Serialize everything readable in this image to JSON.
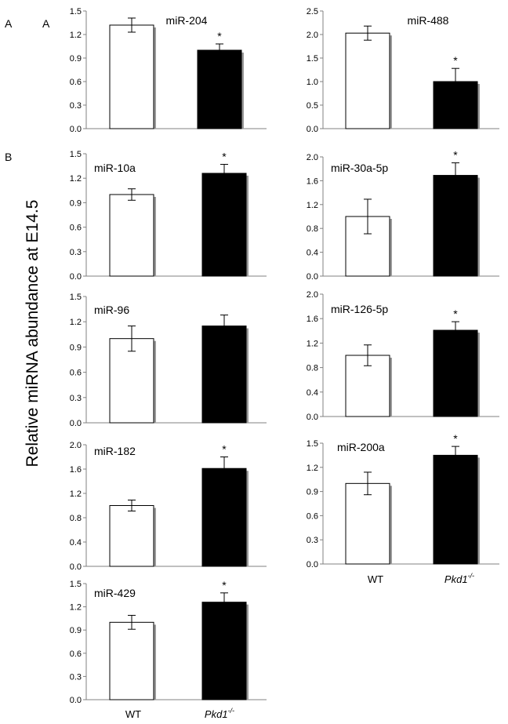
{
  "figure": {
    "ylabel": "Relative miRNA abundance at E14.5",
    "labels": {
      "outer_a": "A",
      "inner_a": "A",
      "b": "B"
    },
    "colors": {
      "wt_fill": "#ffffff",
      "mutant_fill": "#000000",
      "axis": "#808080",
      "shadow": "#9a9a9a"
    }
  },
  "chart_data": [
    {
      "type": "bar",
      "title": "miR-204",
      "categories": [
        "WT",
        "Pkd1-/-"
      ],
      "values": [
        1.32,
        1.0
      ],
      "errors": [
        0.09,
        0.08
      ],
      "significant": [
        false,
        true
      ],
      "ylim": [
        0,
        1.5
      ],
      "yticks": [
        "0.0",
        "0.3",
        "0.6",
        "0.9",
        "1.2",
        "1.5"
      ]
    },
    {
      "type": "bar",
      "title": "miR-488",
      "categories": [
        "WT",
        "Pkd1-/-"
      ],
      "values": [
        2.03,
        1.0
      ],
      "errors": [
        0.15,
        0.28
      ],
      "significant": [
        false,
        true
      ],
      "ylim": [
        0,
        2.5
      ],
      "yticks": [
        "0.0",
        "0.5",
        "1.0",
        "1.5",
        "2.0",
        "2.5"
      ]
    },
    {
      "type": "bar",
      "title": "miR-10a",
      "categories": [
        "WT",
        "Pkd1-/-"
      ],
      "values": [
        1.0,
        1.26
      ],
      "errors": [
        0.07,
        0.11
      ],
      "significant": [
        false,
        true
      ],
      "ylim": [
        0,
        1.5
      ],
      "yticks": [
        "0.0",
        "0.3",
        "0.6",
        "0.9",
        "1.2",
        "1.5"
      ]
    },
    {
      "type": "bar",
      "title": "miR-30a-5p",
      "categories": [
        "WT",
        "Pkd1-/-"
      ],
      "values": [
        1.0,
        1.69
      ],
      "errors": [
        0.29,
        0.21
      ],
      "significant": [
        false,
        true
      ],
      "ylim": [
        0,
        2.0
      ],
      "yticks": [
        "0.0",
        "0.4",
        "0.8",
        "1.2",
        "1.6",
        "2.0"
      ]
    },
    {
      "type": "bar",
      "title": "miR-96",
      "categories": [
        "WT",
        "Pkd1-/-"
      ],
      "values": [
        1.0,
        1.15
      ],
      "errors": [
        0.15,
        0.13
      ],
      "significant": [
        false,
        false
      ],
      "ylim": [
        0,
        1.5
      ],
      "yticks": [
        "0.0",
        "0.3",
        "0.6",
        "0.9",
        "1.2",
        "1.5"
      ]
    },
    {
      "type": "bar",
      "title": "miR-126-5p",
      "categories": [
        "WT",
        "Pkd1-/-"
      ],
      "values": [
        1.0,
        1.41
      ],
      "errors": [
        0.17,
        0.14
      ],
      "significant": [
        false,
        true
      ],
      "ylim": [
        0,
        2.0
      ],
      "yticks": [
        "0.0",
        "0.4",
        "0.8",
        "1.2",
        "1.6",
        "2.0"
      ]
    },
    {
      "type": "bar",
      "title": "miR-182",
      "categories": [
        "WT",
        "Pkd1-/-"
      ],
      "values": [
        1.0,
        1.61
      ],
      "errors": [
        0.09,
        0.19
      ],
      "significant": [
        false,
        true
      ],
      "ylim": [
        0,
        2.0
      ],
      "yticks": [
        "0.0",
        "0.4",
        "0.8",
        "1.2",
        "1.6",
        "2.0"
      ]
    },
    {
      "type": "bar",
      "title": "miR-200a",
      "categories": [
        "WT",
        "Pkd1-/-"
      ],
      "values": [
        1.0,
        1.35
      ],
      "errors": [
        0.14,
        0.11
      ],
      "significant": [
        false,
        true
      ],
      "ylim": [
        0,
        1.5
      ],
      "yticks": [
        "0.0",
        "0.3",
        "0.6",
        "0.9",
        "1.2",
        "1.5"
      ]
    },
    {
      "type": "bar",
      "title": "miR-429",
      "categories": [
        "WT",
        "Pkd1-/-"
      ],
      "values": [
        1.0,
        1.26
      ],
      "errors": [
        0.09,
        0.12
      ],
      "significant": [
        false,
        true
      ],
      "ylim": [
        0,
        1.5
      ],
      "yticks": [
        "0.0",
        "0.3",
        "0.6",
        "0.9",
        "1.2",
        "1.5"
      ]
    }
  ],
  "x_axis_labels": {
    "wt": "WT",
    "mutant_gene": "Pkd1",
    "mutant_sup": "-/-"
  }
}
